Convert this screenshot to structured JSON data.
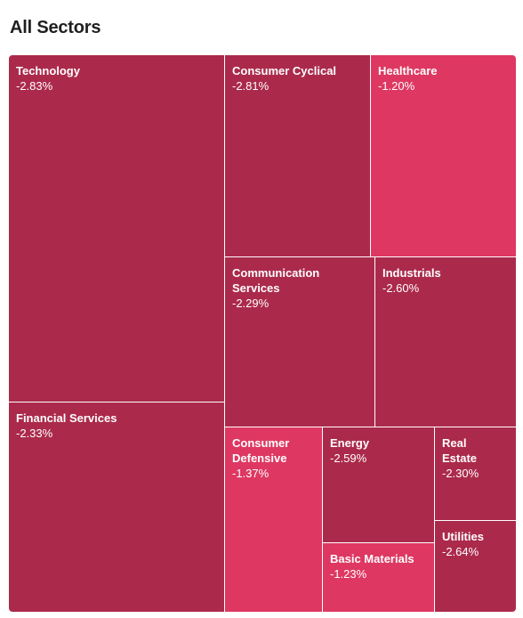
{
  "title": "All Sectors",
  "colors": {
    "strong": "#ab2a4b",
    "mild": "#de3862"
  },
  "chart_data": {
    "type": "treemap",
    "title": "All Sectors",
    "sectors": [
      {
        "name": "Technology",
        "change": "-2.83%",
        "value": -2.83
      },
      {
        "name": "Financial Services",
        "change": "-2.33%",
        "value": -2.33
      },
      {
        "name": "Consumer Cyclical",
        "change": "-2.81%",
        "value": -2.81
      },
      {
        "name": "Healthcare",
        "change": "-1.20%",
        "value": -1.2
      },
      {
        "name": "Communication Services",
        "change": "-2.29%",
        "value": -2.29
      },
      {
        "name": "Industrials",
        "change": "-2.60%",
        "value": -2.6
      },
      {
        "name": "Consumer Defensive",
        "change": "-1.37%",
        "value": -1.37
      },
      {
        "name": "Energy",
        "change": "-2.59%",
        "value": -2.59
      },
      {
        "name": "Real Estate",
        "change": "-2.30%",
        "value": -2.3
      },
      {
        "name": "Utilities",
        "change": "-2.64%",
        "value": -2.64
      },
      {
        "name": "Basic Materials",
        "change": "-1.23%",
        "value": -1.23
      }
    ]
  }
}
